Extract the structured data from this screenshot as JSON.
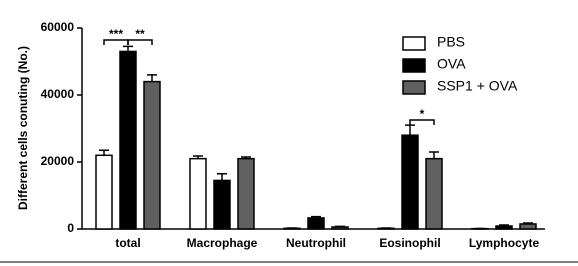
{
  "chart_data": {
    "type": "bar",
    "y_label": "Different cells conuting (No.)",
    "categories": [
      "total",
      "Macrophage",
      "Neutrophil",
      "Eosinophil",
      "Lymphocyte"
    ],
    "series": [
      {
        "name": "PBS",
        "color": "#ffffff",
        "values": [
          22000,
          21000,
          200,
          200,
          100
        ],
        "errors": [
          1500,
          800,
          100,
          100,
          50
        ]
      },
      {
        "name": "OVA",
        "color": "#000000",
        "values": [
          53000,
          14500,
          3300,
          28000,
          900
        ],
        "errors": [
          1500,
          2000,
          400,
          3000,
          300
        ]
      },
      {
        "name": "SSP1 + OVA",
        "color": "#606060",
        "values": [
          44000,
          21000,
          600,
          21000,
          1500
        ],
        "errors": [
          2000,
          500,
          200,
          2000,
          300
        ]
      }
    ],
    "annotations": [
      "***",
      "**",
      "*"
    ],
    "ylim": [
      0,
      60000
    ],
    "yticks": [
      0,
      20000,
      40000,
      60000
    ]
  }
}
